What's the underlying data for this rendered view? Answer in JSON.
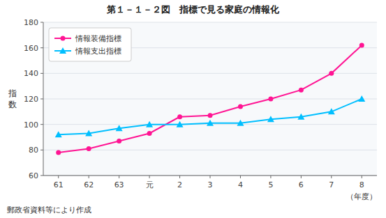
{
  "chart_data": {
    "type": "line",
    "title": "第１－１－２図　指標で見る家庭の情報化",
    "x_label": "（年度）",
    "y_label": [
      "指",
      "数"
    ],
    "annotations": [
      "郵政省資料等により作成"
    ],
    "categories": [
      "61",
      "62",
      "63",
      "元",
      "2",
      "3",
      "4",
      "5",
      "6",
      "7",
      "8"
    ],
    "series": [
      {
        "name": "情報装備指標",
        "color": "#ff1493",
        "marker": "circle",
        "values": [
          78,
          81,
          87,
          93,
          106,
          107,
          114,
          120,
          127,
          140,
          162
        ]
      },
      {
        "name": "情報支出指標",
        "color": "#00bfff",
        "marker": "triangle",
        "values": [
          92,
          93,
          97,
          100,
          100,
          101,
          101,
          104,
          106,
          110,
          120
        ]
      }
    ],
    "ylim": [
      60,
      180
    ],
    "yticks": [
      60,
      80,
      100,
      120,
      140,
      160,
      180
    ],
    "grid": true,
    "legend": "upper left"
  }
}
